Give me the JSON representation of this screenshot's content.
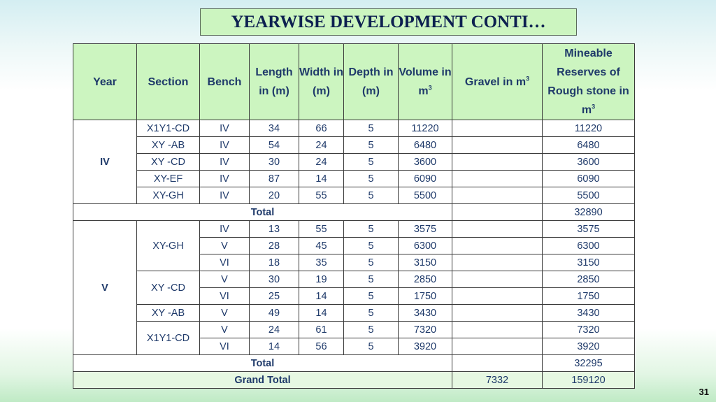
{
  "slide": {
    "title": "YEARWISE DEVELOPMENT CONTI…",
    "page_number": "31"
  },
  "headers": {
    "year": "Year",
    "section": "Section",
    "bench": "Bench",
    "length": "Length in (m)",
    "width": "Width in (m)",
    "depth": "Depth in (m)",
    "volume": "Volume in m",
    "volume_sup": "3",
    "gravel": "Gravel in m",
    "gravel_sup": "3",
    "mineable": "Mineable Reserves of Rough stone in m",
    "mineable_sup": "3"
  },
  "year_iv": {
    "year": "IV",
    "rows": [
      {
        "section": "X1Y1-CD",
        "bench": "IV",
        "length": "34",
        "width": "66",
        "depth": "5",
        "volume": "11220",
        "gravel": "",
        "mineable": "11220"
      },
      {
        "section": "XY -AB",
        "bench": "IV",
        "length": "54",
        "width": "24",
        "depth": "5",
        "volume": "6480",
        "gravel": "",
        "mineable": "6480"
      },
      {
        "section": "XY -CD",
        "bench": "IV",
        "length": "30",
        "width": "24",
        "depth": "5",
        "volume": "3600",
        "gravel": "",
        "mineable": "3600"
      },
      {
        "section": "XY-EF",
        "bench": "IV",
        "length": "87",
        "width": "14",
        "depth": "5",
        "volume": "6090",
        "gravel": "",
        "mineable": "6090"
      },
      {
        "section": "XY-GH",
        "bench": "IV",
        "length": "20",
        "width": "55",
        "depth": "5",
        "volume": "5500",
        "gravel": "",
        "mineable": "5500"
      }
    ],
    "total_label": "Total",
    "total_gravel": "",
    "total_mineable": "32890"
  },
  "year_v": {
    "year": "V",
    "sections": [
      "XY-GH",
      "XY -CD",
      "XY -AB",
      "X1Y1-CD"
    ],
    "rows": [
      {
        "bench": "IV",
        "length": "13",
        "width": "55",
        "depth": "5",
        "volume": "3575",
        "gravel": "",
        "mineable": "3575"
      },
      {
        "bench": "V",
        "length": "28",
        "width": "45",
        "depth": "5",
        "volume": "6300",
        "gravel": "",
        "mineable": "6300"
      },
      {
        "bench": "VI",
        "length": "18",
        "width": "35",
        "depth": "5",
        "volume": "3150",
        "gravel": "",
        "mineable": "3150"
      },
      {
        "bench": "V",
        "length": "30",
        "width": "19",
        "depth": "5",
        "volume": "2850",
        "gravel": "",
        "mineable": "2850"
      },
      {
        "bench": "VI",
        "length": "25",
        "width": "14",
        "depth": "5",
        "volume": "1750",
        "gravel": "",
        "mineable": "1750"
      },
      {
        "bench": "V",
        "length": "49",
        "width": "14",
        "depth": "5",
        "volume": "3430",
        "gravel": "",
        "mineable": "3430"
      },
      {
        "bench": "V",
        "length": "24",
        "width": "61",
        "depth": "5",
        "volume": "7320",
        "gravel": "",
        "mineable": "7320"
      },
      {
        "bench": "VI",
        "length": "14",
        "width": "56",
        "depth": "5",
        "volume": "3920",
        "gravel": "",
        "mineable": "3920"
      }
    ],
    "total_label": "Total",
    "total_gravel": "",
    "total_mineable": "32295"
  },
  "grand_total": {
    "label": "Grand Total",
    "gravel": "7332",
    "mineable": "159120"
  }
}
